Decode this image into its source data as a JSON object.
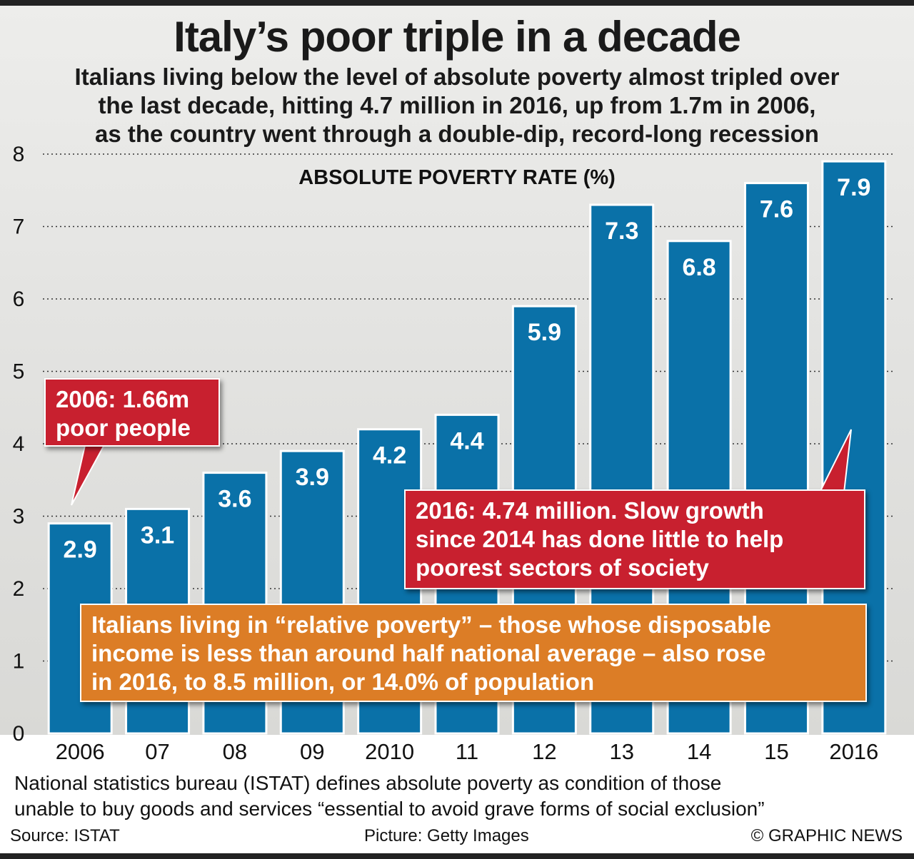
{
  "title": "Italy’s poor triple in a decade",
  "subtitle_lines": [
    "Italians living below the level of absolute poverty almost tripled over",
    "the last decade, hitting 4.7 million in 2016, up from 1.7m in 2006,",
    "as the country went through a double-dip, record-long recession"
  ],
  "callouts": {
    "start": [
      "2006: 1.66m",
      "poor people"
    ],
    "end": [
      "2016: 4.74 million. Slow growth",
      "since 2014 has done little to help",
      "poorest sectors of society"
    ],
    "relative": [
      "Italians living in “relative poverty” – those whose disposable",
      "income is less than around half national average – also rose",
      "in 2016, to 8.5 million, or 14.0% of population"
    ]
  },
  "footnote_lines": [
    "National statistics bureau (ISTAT) defines absolute poverty as condition of those",
    "unable to buy goods and services “essential to avoid grave forms of social exclusion”"
  ],
  "credits": {
    "source": "Source: ISTAT",
    "picture": "Picture: Getty Images",
    "copyright": "© GRAPHIC NEWS"
  },
  "colors": {
    "bar": "#0a71a8",
    "bar_border": "#ffffff",
    "callout_red": "#c8202f",
    "callout_orange": "#dc7d26",
    "text": "#111111"
  },
  "chart_data": {
    "type": "bar",
    "title": "ABSOLUTE POVERTY RATE (%)",
    "categories": [
      "2006",
      "07",
      "08",
      "09",
      "2010",
      "11",
      "12",
      "13",
      "14",
      "15",
      "2016"
    ],
    "values": [
      2.9,
      3.1,
      3.6,
      3.9,
      4.2,
      4.4,
      5.9,
      7.3,
      6.8,
      7.6,
      7.9
    ],
    "value_labels": [
      "2.9",
      "3.1",
      "3.6",
      "3.9",
      "4.2",
      "4.4",
      "5.9",
      "7.3",
      "6.8",
      "7.6",
      "7.9"
    ],
    "ylim": [
      0,
      8
    ],
    "yticks": [
      "0",
      "1",
      "2",
      "3",
      "4",
      "5",
      "6",
      "7",
      "8"
    ],
    "grid": true,
    "xlabel": "",
    "ylabel": ""
  }
}
